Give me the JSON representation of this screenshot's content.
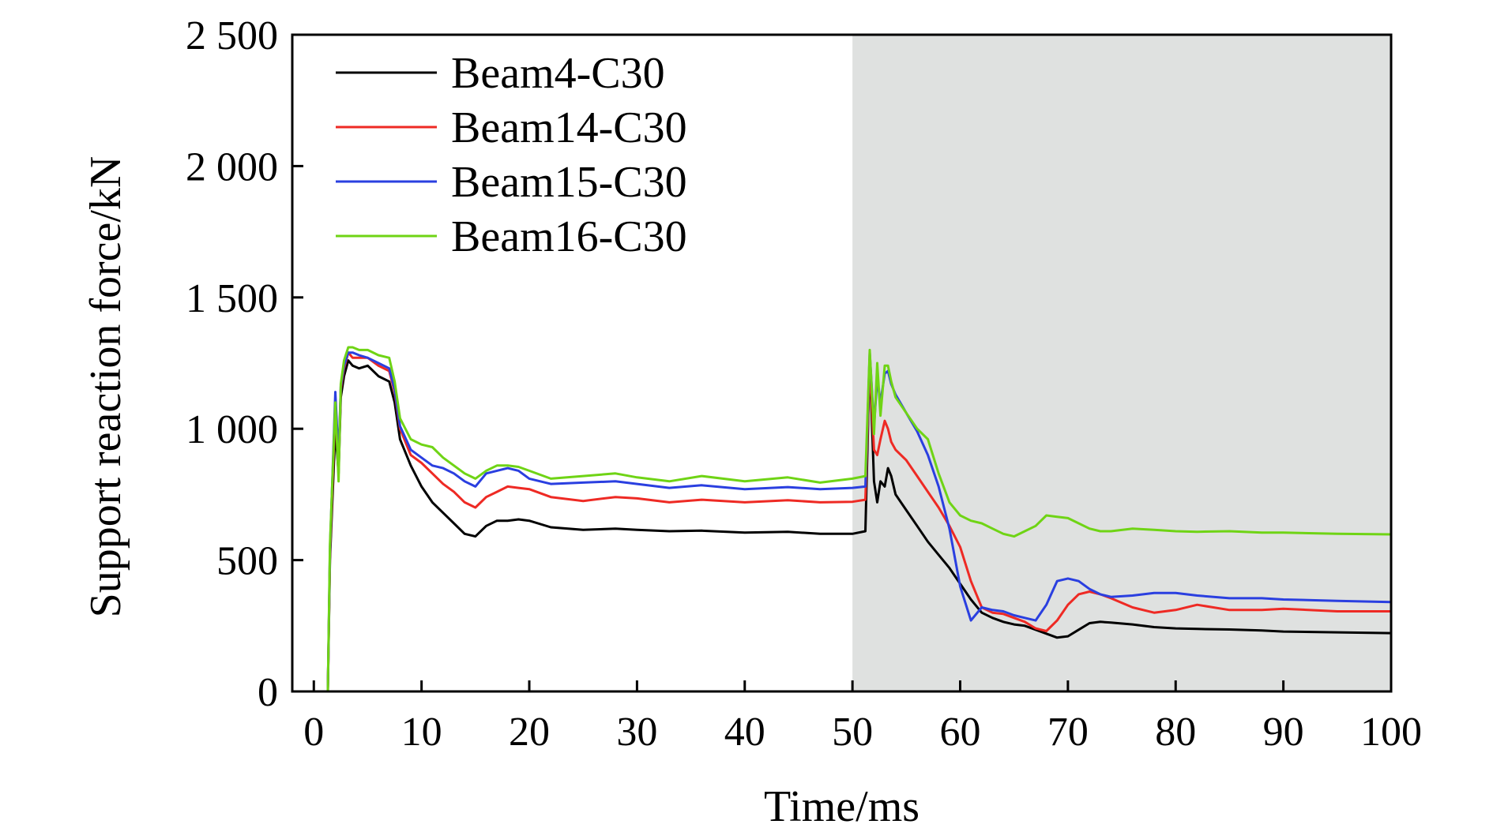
{
  "chart_data": {
    "type": "line",
    "title": "",
    "xlabel": "Time/ms",
    "ylabel": "Support reaction force/kN",
    "xlim": [
      -2,
      100
    ],
    "ylim": [
      0,
      2500
    ],
    "xticks": [
      0,
      10,
      20,
      30,
      40,
      50,
      60,
      70,
      80,
      90,
      100
    ],
    "xtick_labels": [
      "0",
      "10",
      "20",
      "30",
      "40",
      "50",
      "60",
      "70",
      "80",
      "90",
      "100"
    ],
    "yticks": [
      0,
      500,
      1000,
      1500,
      2000,
      2500
    ],
    "ytick_labels": [
      "0",
      "500",
      "1 000",
      "1 500",
      "2 000",
      "2 500"
    ],
    "shaded_region": {
      "x_start": 50,
      "x_end": 100,
      "color": "#dfe1e0"
    },
    "grid": false,
    "legend_position": "top-left",
    "series": [
      {
        "name": "Beam4-C30",
        "color": "#000000",
        "x": [
          0,
          1.3,
          1.5,
          2.0,
          2.3,
          2.5,
          2.8,
          3.2,
          3.6,
          4.2,
          5.0,
          6.0,
          7.0,
          7.5,
          8.0,
          9.0,
          10.0,
          11.0,
          12.0,
          13.0,
          14.0,
          15.0,
          16.0,
          17.0,
          18.0,
          19.0,
          20.0,
          22.0,
          25.0,
          28.0,
          30.0,
          33.0,
          36.0,
          40.0,
          44.0,
          47.0,
          50.0,
          51.2,
          51.6,
          52.0,
          52.3,
          52.6,
          53.0,
          53.3,
          53.6,
          54.0,
          55.0,
          56.0,
          57.0,
          58.0,
          59.0,
          60.0,
          61.0,
          62.0,
          63.0,
          64.0,
          65.0,
          66.0,
          67.0,
          68.0,
          69.0,
          70.0,
          71.0,
          72.0,
          73.0,
          74.0,
          76.0,
          78.0,
          80.0,
          82.0,
          85.0,
          88.0,
          90.0,
          95.0,
          100.0
        ],
        "values": [
          0,
          0,
          500,
          1000,
          830,
          1120,
          1200,
          1260,
          1240,
          1230,
          1240,
          1200,
          1180,
          1100,
          960,
          860,
          780,
          720,
          680,
          640,
          600,
          590,
          630,
          650,
          650,
          655,
          650,
          625,
          615,
          620,
          615,
          610,
          612,
          605,
          608,
          600,
          600,
          610,
          1270,
          800,
          720,
          800,
          780,
          850,
          820,
          750,
          690,
          630,
          570,
          520,
          470,
          410,
          350,
          300,
          280,
          265,
          255,
          250,
          235,
          220,
          205,
          210,
          235,
          260,
          265,
          262,
          255,
          245,
          240,
          238,
          236,
          232,
          228,
          225,
          222
        ]
      },
      {
        "name": "Beam14-C30",
        "color": "#ee2a24",
        "x": [
          0,
          1.3,
          1.5,
          2.0,
          2.3,
          2.5,
          2.8,
          3.2,
          3.6,
          4.2,
          5.0,
          6.0,
          7.0,
          7.5,
          8.0,
          9.0,
          10.0,
          11.0,
          12.0,
          13.0,
          14.0,
          15.0,
          16.0,
          17.0,
          18.0,
          19.0,
          20.0,
          22.0,
          25.0,
          28.0,
          30.0,
          33.0,
          36.0,
          40.0,
          44.0,
          47.0,
          50.0,
          51.2,
          51.6,
          52.0,
          52.3,
          52.6,
          53.0,
          53.3,
          53.6,
          54.0,
          55.0,
          56.0,
          57.0,
          58.0,
          59.0,
          60.0,
          61.0,
          62.0,
          63.0,
          64.0,
          65.0,
          66.0,
          67.0,
          68.0,
          69.0,
          70.0,
          71.0,
          72.0,
          73.0,
          74.0,
          76.0,
          78.0,
          80.0,
          82.0,
          85.0,
          88.0,
          90.0,
          95.0,
          100.0
        ],
        "values": [
          0,
          0,
          520,
          1080,
          860,
          1150,
          1230,
          1290,
          1270,
          1270,
          1270,
          1240,
          1220,
          1140,
          1000,
          900,
          870,
          830,
          790,
          760,
          720,
          700,
          740,
          760,
          780,
          775,
          770,
          740,
          725,
          740,
          735,
          720,
          730,
          720,
          728,
          720,
          722,
          730,
          1250,
          920,
          900,
          960,
          1030,
          1000,
          950,
          920,
          880,
          820,
          760,
          700,
          630,
          550,
          420,
          320,
          300,
          295,
          280,
          265,
          240,
          230,
          270,
          330,
          370,
          380,
          370,
          355,
          320,
          300,
          310,
          330,
          310,
          310,
          315,
          305,
          305
        ]
      },
      {
        "name": "Beam15-C30",
        "color": "#2a3fe0",
        "x": [
          0,
          1.3,
          1.5,
          2.0,
          2.3,
          2.5,
          2.8,
          3.2,
          3.6,
          4.2,
          5.0,
          6.0,
          7.0,
          7.5,
          8.0,
          9.0,
          10.0,
          11.0,
          12.0,
          13.0,
          14.0,
          15.0,
          16.0,
          17.0,
          18.0,
          19.0,
          20.0,
          22.0,
          25.0,
          28.0,
          30.0,
          33.0,
          36.0,
          40.0,
          44.0,
          47.0,
          50.0,
          51.2,
          51.6,
          52.0,
          52.3,
          52.6,
          53.0,
          53.3,
          53.6,
          54.0,
          55.0,
          56.0,
          57.0,
          58.0,
          59.0,
          60.0,
          61.0,
          62.0,
          63.0,
          64.0,
          65.0,
          66.0,
          67.0,
          68.0,
          69.0,
          70.0,
          71.0,
          72.0,
          73.0,
          74.0,
          76.0,
          78.0,
          80.0,
          82.0,
          85.0,
          88.0,
          90.0,
          95.0,
          100.0
        ],
        "values": [
          0,
          0,
          540,
          1140,
          880,
          1160,
          1240,
          1290,
          1290,
          1280,
          1270,
          1250,
          1230,
          1150,
          1010,
          920,
          890,
          860,
          850,
          830,
          800,
          780,
          830,
          840,
          850,
          840,
          810,
          790,
          795,
          800,
          790,
          775,
          785,
          770,
          778,
          770,
          775,
          780,
          1290,
          1010,
          1190,
          1100,
          1210,
          1220,
          1170,
          1130,
          1060,
          990,
          900,
          780,
          620,
          400,
          270,
          320,
          310,
          305,
          290,
          280,
          270,
          330,
          420,
          430,
          420,
          390,
          370,
          360,
          365,
          375,
          375,
          365,
          355,
          355,
          350,
          345,
          340
        ]
      },
      {
        "name": "Beam16-C30",
        "color": "#6fd415",
        "x": [
          0,
          1.3,
          1.5,
          2.0,
          2.3,
          2.5,
          2.8,
          3.2,
          3.6,
          4.2,
          5.0,
          6.0,
          7.0,
          7.5,
          8.0,
          9.0,
          10.0,
          11.0,
          12.0,
          13.0,
          14.0,
          15.0,
          16.0,
          17.0,
          18.0,
          19.0,
          20.0,
          22.0,
          25.0,
          28.0,
          30.0,
          33.0,
          36.0,
          40.0,
          44.0,
          47.0,
          50.0,
          51.2,
          51.6,
          52.0,
          52.3,
          52.6,
          53.0,
          53.3,
          53.6,
          54.0,
          55.0,
          56.0,
          57.0,
          58.0,
          59.0,
          60.0,
          61.0,
          62.0,
          63.0,
          64.0,
          65.0,
          66.0,
          67.0,
          68.0,
          69.0,
          70.0,
          71.0,
          72.0,
          73.0,
          74.0,
          76.0,
          78.0,
          80.0,
          82.0,
          85.0,
          88.0,
          90.0,
          95.0,
          100.0
        ],
        "values": [
          0,
          0,
          560,
          1100,
          800,
          1170,
          1260,
          1310,
          1310,
          1300,
          1300,
          1280,
          1270,
          1180,
          1040,
          960,
          940,
          930,
          890,
          860,
          830,
          810,
          840,
          860,
          860,
          855,
          840,
          810,
          820,
          830,
          815,
          800,
          820,
          800,
          815,
          795,
          810,
          820,
          1300,
          980,
          1250,
          1050,
          1240,
          1240,
          1180,
          1120,
          1060,
          1000,
          960,
          830,
          720,
          670,
          650,
          640,
          620,
          600,
          590,
          610,
          630,
          670,
          665,
          660,
          640,
          620,
          610,
          610,
          620,
          615,
          610,
          608,
          610,
          605,
          605,
          600,
          598
        ]
      }
    ]
  }
}
